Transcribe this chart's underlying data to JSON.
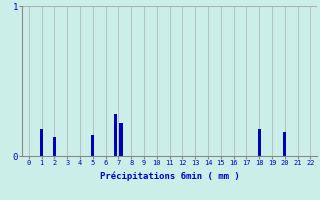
{
  "title": "",
  "xlabel": "Précipitations 6min ( mm )",
  "ylabel": "",
  "background_color": "#cceee8",
  "bar_color": "#0000bb",
  "grid_color": "#b0b0b0",
  "axis_color": "#888888",
  "text_color": "#0000cc",
  "ylim": [
    0,
    1.0
  ],
  "xlim": [
    -0.5,
    22.5
  ],
  "yticks": [
    0,
    1
  ],
  "xticks": [
    0,
    1,
    2,
    3,
    4,
    5,
    6,
    7,
    8,
    9,
    10,
    11,
    12,
    13,
    14,
    15,
    16,
    17,
    18,
    19,
    20,
    21,
    22
  ],
  "bar_positions": [
    1,
    2,
    5,
    6.8,
    7.2,
    18,
    20
  ],
  "bar_heights": [
    0.18,
    0.13,
    0.14,
    0.28,
    0.22,
    0.18,
    0.16
  ],
  "bar_width": 0.25
}
